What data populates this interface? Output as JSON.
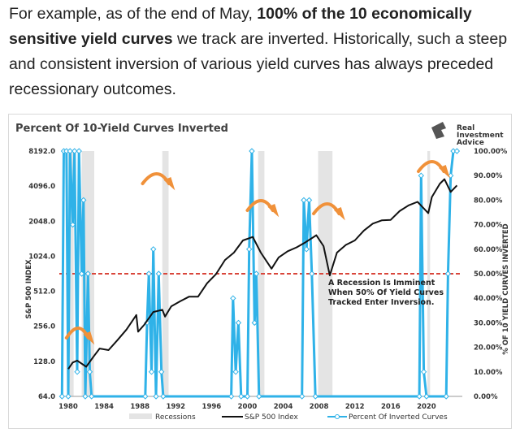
{
  "paragraph": {
    "part1": "For example, as of the end of May, ",
    "bold": "100% of the 10 economically sensitive yield curves",
    "part2": " we track are inverted. Historically, such a steep and consistent inversion of various yield curves has always preceded recessionary outcomes."
  },
  "logo": {
    "line1": "Real",
    "line2": "Investment",
    "line3": "Advice"
  },
  "colors": {
    "sp500": "#111111",
    "inverted": "#2fb2e8",
    "recession": "#e4e4e4",
    "threshold": "#d9463b",
    "arrow": "#f0913a"
  },
  "chart_data": {
    "type": "line",
    "title": "Percent Of 10-Yield Curves Inverted",
    "ylabel_left": "S&P 500 INDEX",
    "ylabel_right": "% OF 10 YIELD CURVES INVERTED",
    "left_axis": {
      "scale": "log2",
      "ylim": [
        64,
        8192
      ],
      "ticks": [
        "64.0",
        "128.0",
        "256.0",
        "512.0",
        "1024.0",
        "2048.0",
        "4096.0",
        "8192.0"
      ]
    },
    "right_axis": {
      "ylim": [
        0,
        100
      ],
      "ticks": [
        "0.00%",
        "10.00%",
        "20.00%",
        "30.00%",
        "40.00%",
        "50.00%",
        "60.00%",
        "70.00%",
        "80.00%",
        "90.00%",
        "100.00%"
      ]
    },
    "xlim": [
      1979,
      2024
    ],
    "x_ticks": [
      "1980",
      "1984",
      "1988",
      "1992",
      "1996",
      "2000",
      "2004",
      "2008",
      "2012",
      "2016",
      "2020"
    ],
    "legend": [
      "Recessions",
      "S&P 500 Index",
      "Percent Of Inverted Curves"
    ],
    "legend_position": "bottom",
    "annotation": {
      "line1": "A Recession Is Imminent",
      "line2": "When 50% Of Yield Curves",
      "line3": "Tracked Enter Inversion."
    },
    "threshold": 50,
    "recessions": [
      [
        1980.0,
        1980.6
      ],
      [
        1981.5,
        1982.9
      ],
      [
        1990.5,
        1991.2
      ],
      [
        2001.2,
        2001.9
      ],
      [
        2007.9,
        2009.5
      ],
      [
        2020.1,
        2020.4
      ]
    ],
    "sp500": {
      "name": "S&P 500 Index",
      "points": [
        [
          1980,
          110
        ],
        [
          1980.5,
          125
        ],
        [
          1981,
          130
        ],
        [
          1982,
          115
        ],
        [
          1982.8,
          140
        ],
        [
          1983.5,
          165
        ],
        [
          1984.5,
          160
        ],
        [
          1985.5,
          195
        ],
        [
          1986.5,
          240
        ],
        [
          1987.6,
          320
        ],
        [
          1987.8,
          230
        ],
        [
          1988.5,
          265
        ],
        [
          1989.5,
          340
        ],
        [
          1990.5,
          355
        ],
        [
          1990.8,
          310
        ],
        [
          1991.5,
          380
        ],
        [
          1992.5,
          420
        ],
        [
          1993.5,
          460
        ],
        [
          1994.5,
          460
        ],
        [
          1995.5,
          600
        ],
        [
          1996.5,
          720
        ],
        [
          1997.5,
          950
        ],
        [
          1998.5,
          1100
        ],
        [
          1999.5,
          1400
        ],
        [
          2000.6,
          1500
        ],
        [
          2001.5,
          1100
        ],
        [
          2002.7,
          800
        ],
        [
          2003.5,
          1000
        ],
        [
          2004.5,
          1130
        ],
        [
          2005.5,
          1220
        ],
        [
          2006.5,
          1350
        ],
        [
          2007.7,
          1550
        ],
        [
          2008.5,
          1250
        ],
        [
          2009.2,
          700
        ],
        [
          2010,
          1100
        ],
        [
          2011,
          1280
        ],
        [
          2012,
          1400
        ],
        [
          2013,
          1700
        ],
        [
          2014,
          1950
        ],
        [
          2015,
          2080
        ],
        [
          2016,
          2100
        ],
        [
          2017,
          2500
        ],
        [
          2018,
          2800
        ],
        [
          2019,
          3000
        ],
        [
          2020.2,
          2400
        ],
        [
          2020.6,
          3300
        ],
        [
          2021.5,
          4300
        ],
        [
          2022,
          4700
        ],
        [
          2022.7,
          3650
        ],
        [
          2023.4,
          4150
        ]
      ]
    },
    "inverted": {
      "name": "Percent Of Inverted Curves",
      "points": [
        [
          1979.3,
          0
        ],
        [
          1979.5,
          100
        ],
        [
          1979.8,
          100
        ],
        [
          1980.0,
          0
        ],
        [
          1980.2,
          100
        ],
        [
          1980.5,
          70
        ],
        [
          1980.7,
          100
        ],
        [
          1981.0,
          10
        ],
        [
          1981.2,
          100
        ],
        [
          1981.5,
          50
        ],
        [
          1981.7,
          80
        ],
        [
          1981.9,
          0
        ],
        [
          1982.2,
          50
        ],
        [
          1982.4,
          10
        ],
        [
          1982.6,
          0
        ],
        [
          1988.6,
          0
        ],
        [
          1988.8,
          30
        ],
        [
          1989.0,
          50
        ],
        [
          1989.3,
          10
        ],
        [
          1989.5,
          60
        ],
        [
          1989.8,
          0
        ],
        [
          1990.1,
          50
        ],
        [
          1990.4,
          10
        ],
        [
          1990.6,
          0
        ],
        [
          1998.2,
          0
        ],
        [
          1998.4,
          40
        ],
        [
          1998.7,
          10
        ],
        [
          1999.0,
          30
        ],
        [
          1999.3,
          0
        ],
        [
          2000.0,
          0
        ],
        [
          2000.2,
          60
        ],
        [
          2000.5,
          100
        ],
        [
          2000.8,
          30
        ],
        [
          2001.0,
          50
        ],
        [
          2001.3,
          0
        ],
        [
          2006.1,
          0
        ],
        [
          2006.3,
          80
        ],
        [
          2006.6,
          60
        ],
        [
          2006.9,
          80
        ],
        [
          2007.2,
          50
        ],
        [
          2007.6,
          0
        ],
        [
          2019.2,
          0
        ],
        [
          2019.4,
          90
        ],
        [
          2019.7,
          10
        ],
        [
          2020.0,
          0
        ],
        [
          2022.2,
          0
        ],
        [
          2022.4,
          50
        ],
        [
          2022.7,
          90
        ],
        [
          2023.0,
          100
        ],
        [
          2023.4,
          100
        ]
      ]
    }
  }
}
